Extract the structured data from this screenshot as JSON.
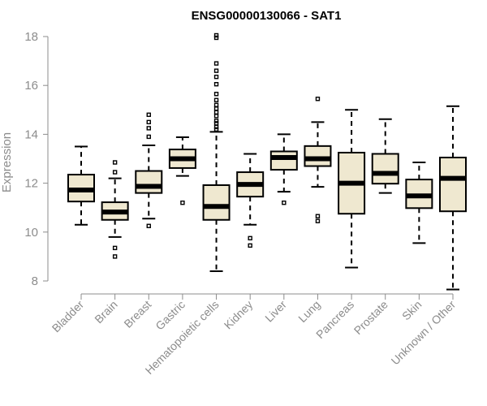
{
  "chart_data": {
    "type": "boxplot",
    "title": "ENSG00000130066 - SAT1",
    "xlabel": "",
    "ylabel": "Expression",
    "ylim": [
      7.5,
      18.2
    ],
    "yticks": [
      8,
      10,
      12,
      14,
      16,
      18
    ],
    "box_color": "#efe8d0",
    "categories": [
      "Bladder",
      "Brain",
      "Breast",
      "Gastric",
      "Hematopoietic cells",
      "Kidney",
      "Liver",
      "Lung",
      "Pancreas",
      "Prostate",
      "Skin",
      "Unknown / Other"
    ],
    "boxes": [
      {
        "q1": 11.25,
        "median": 11.72,
        "q3": 12.35,
        "whisker_low": 10.3,
        "whisker_high": 13.5,
        "outliers": []
      },
      {
        "q1": 10.5,
        "median": 10.82,
        "q3": 11.22,
        "whisker_low": 9.8,
        "whisker_high": 12.2,
        "outliers": [
          12.85,
          12.45,
          9.35,
          9.0
        ]
      },
      {
        "q1": 11.6,
        "median": 11.87,
        "q3": 12.5,
        "whisker_low": 10.55,
        "whisker_high": 13.55,
        "outliers": [
          14.8,
          14.5,
          14.25,
          13.9,
          10.25
        ]
      },
      {
        "q1": 12.62,
        "median": 13.0,
        "q3": 13.38,
        "whisker_low": 12.3,
        "whisker_high": 13.88,
        "outliers": [
          11.2
        ]
      },
      {
        "q1": 10.5,
        "median": 11.05,
        "q3": 11.92,
        "whisker_low": 8.4,
        "whisker_high": 14.1,
        "outliers": [
          18.05,
          17.95,
          16.9,
          16.6,
          16.35,
          16.05,
          15.65,
          15.4,
          15.2,
          15.05,
          14.9,
          14.75,
          14.55,
          14.45,
          14.3,
          14.2
        ]
      },
      {
        "q1": 11.45,
        "median": 11.95,
        "q3": 12.45,
        "whisker_low": 10.3,
        "whisker_high": 13.2,
        "outliers": [
          9.75,
          9.45
        ]
      },
      {
        "q1": 12.55,
        "median": 13.05,
        "q3": 13.3,
        "whisker_low": 11.65,
        "whisker_high": 14.0,
        "outliers": [
          11.2
        ]
      },
      {
        "q1": 12.7,
        "median": 13.0,
        "q3": 13.52,
        "whisker_low": 11.85,
        "whisker_high": 14.5,
        "outliers": [
          15.45,
          10.65,
          10.45
        ]
      },
      {
        "q1": 10.75,
        "median": 12.0,
        "q3": 13.25,
        "whisker_low": 8.55,
        "whisker_high": 15.0,
        "outliers": []
      },
      {
        "q1": 11.98,
        "median": 12.4,
        "q3": 13.2,
        "whisker_low": 11.6,
        "whisker_high": 14.62,
        "outliers": []
      },
      {
        "q1": 10.98,
        "median": 11.48,
        "q3": 12.15,
        "whisker_low": 9.55,
        "whisker_high": 12.85,
        "outliers": []
      },
      {
        "q1": 10.85,
        "median": 12.2,
        "q3": 13.05,
        "whisker_low": 7.65,
        "whisker_high": 15.15,
        "outliers": []
      }
    ]
  }
}
